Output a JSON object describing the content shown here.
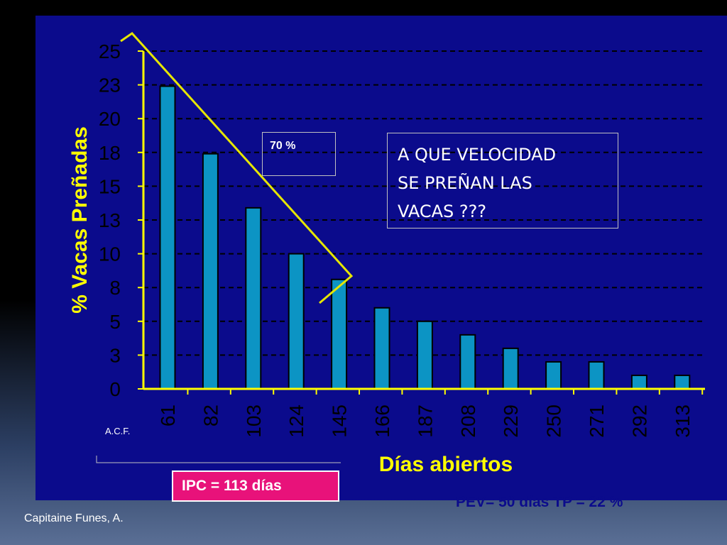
{
  "chart_data": {
    "type": "bar",
    "categories": [
      "61",
      "82",
      "103",
      "124",
      "145",
      "166",
      "187",
      "208",
      "229",
      "250",
      "271",
      "292",
      "313"
    ],
    "values": [
      22.4,
      17.4,
      13.4,
      10.0,
      8.1,
      6.0,
      5.0,
      4.0,
      3.0,
      2.0,
      2.0,
      1.0,
      1.0
    ],
    "yticks": [
      "0",
      "3",
      "5",
      "8",
      "10",
      "13",
      "15",
      "18",
      "20",
      "23",
      "25"
    ],
    "ylim": [
      0,
      25
    ],
    "ylabel": "% Vacas Preñadas",
    "xlabel": "Días abiertos",
    "grid": true,
    "colors": {
      "background": "#0b0b8c",
      "bar": "#0c94c4",
      "axis": "#ffff00",
      "text": "#000000"
    }
  },
  "annotations": {
    "pct_label": "70 %",
    "question_lines": [
      "A QUE VELOCIDAD",
      "SE PREÑAN LAS",
      "VACAS ???"
    ],
    "acf": "A.C.F.",
    "ipc": "IPC = 113 días",
    "pev": "PEV= 50 días TP = 22 %"
  },
  "footer": {
    "author": "Capitaine Funes, A."
  }
}
